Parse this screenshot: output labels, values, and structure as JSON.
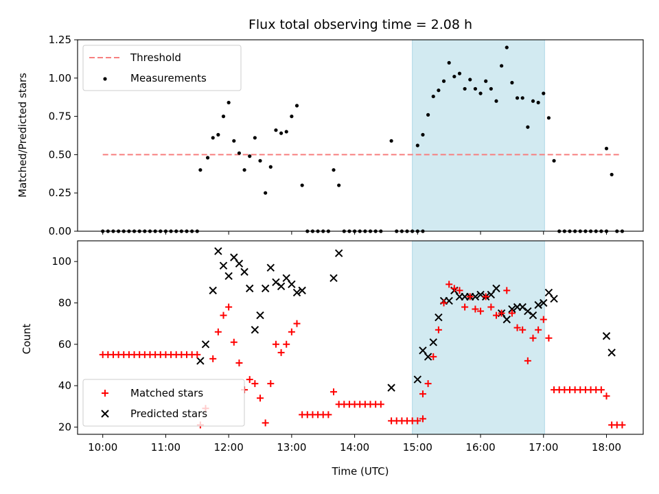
{
  "colors": {
    "threshold": "#f77f7f",
    "measurement": "#000000",
    "matched": "#ff0000",
    "predicted": "#000000",
    "shade": "#add8e6"
  },
  "chart_data": [
    {
      "type": "scatter",
      "title": "Flux total observing time = 2.08 h",
      "ylabel": "Matched/Predicted stars",
      "xlabel": "",
      "xlim": [
        "09:36",
        "18:35"
      ],
      "ylim": [
        0,
        1.25
      ],
      "yticks": [
        0.0,
        0.25,
        0.5,
        0.75,
        1.0,
        1.25
      ],
      "ytick_labels": [
        "0.00",
        "0.25",
        "0.50",
        "0.75",
        "1.00",
        "1.25"
      ],
      "grid": false,
      "legend": "upper left",
      "shaded_interval": [
        "14:55",
        "17:01"
      ],
      "threshold": {
        "name": "Threshold",
        "value": 0.5,
        "x_range": [
          "10:00",
          "18:12"
        ]
      },
      "series": [
        {
          "name": "Measurements",
          "points": [
            [
              "10:00",
              0
            ],
            [
              "10:05",
              0
            ],
            [
              "10:10",
              0
            ],
            [
              "10:15",
              0
            ],
            [
              "10:20",
              0
            ],
            [
              "10:25",
              0
            ],
            [
              "10:30",
              0
            ],
            [
              "10:35",
              0
            ],
            [
              "10:40",
              0
            ],
            [
              "10:45",
              0
            ],
            [
              "10:50",
              0
            ],
            [
              "10:55",
              0
            ],
            [
              "11:00",
              0
            ],
            [
              "11:05",
              0
            ],
            [
              "11:10",
              0
            ],
            [
              "11:15",
              0
            ],
            [
              "11:20",
              0
            ],
            [
              "11:25",
              0
            ],
            [
              "11:30",
              0
            ],
            [
              "11:33",
              0.4
            ],
            [
              "11:40",
              0.48
            ],
            [
              "11:45",
              0.61
            ],
            [
              "11:50",
              0.63
            ],
            [
              "11:55",
              0.75
            ],
            [
              "12:00",
              0.84
            ],
            [
              "12:05",
              0.59
            ],
            [
              "12:10",
              0.51
            ],
            [
              "12:15",
              0.4
            ],
            [
              "12:20",
              0.49
            ],
            [
              "12:25",
              0.61
            ],
            [
              "12:30",
              0.46
            ],
            [
              "12:35",
              0.25
            ],
            [
              "12:40",
              0.42
            ],
            [
              "12:45",
              0.66
            ],
            [
              "12:50",
              0.64
            ],
            [
              "12:55",
              0.65
            ],
            [
              "13:00",
              0.75
            ],
            [
              "13:05",
              0.82
            ],
            [
              "13:10",
              0.3
            ],
            [
              "13:15",
              0
            ],
            [
              "13:20",
              0
            ],
            [
              "13:25",
              0
            ],
            [
              "13:30",
              0
            ],
            [
              "13:35",
              0
            ],
            [
              "13:40",
              0.4
            ],
            [
              "13:45",
              0.3
            ],
            [
              "13:50",
              0
            ],
            [
              "13:55",
              0
            ],
            [
              "14:00",
              0
            ],
            [
              "14:05",
              0
            ],
            [
              "14:10",
              0
            ],
            [
              "14:15",
              0
            ],
            [
              "14:20",
              0
            ],
            [
              "14:25",
              0
            ],
            [
              "14:35",
              0.59
            ],
            [
              "14:40",
              0
            ],
            [
              "14:45",
              0
            ],
            [
              "14:50",
              0
            ],
            [
              "14:55",
              0
            ],
            [
              "15:00",
              0
            ],
            [
              "15:05",
              0
            ],
            [
              "15:00",
              0.56
            ],
            [
              "15:05",
              0.63
            ],
            [
              "15:10",
              0.76
            ],
            [
              "15:15",
              0.88
            ],
            [
              "15:20",
              0.92
            ],
            [
              "15:25",
              0.98
            ],
            [
              "15:30",
              1.1
            ],
            [
              "15:35",
              1.01
            ],
            [
              "15:40",
              1.03
            ],
            [
              "15:45",
              0.93
            ],
            [
              "15:50",
              0.99
            ],
            [
              "15:55",
              0.93
            ],
            [
              "16:00",
              0.9
            ],
            [
              "16:05",
              0.98
            ],
            [
              "16:10",
              0.93
            ],
            [
              "16:15",
              0.85
            ],
            [
              "16:20",
              1.08
            ],
            [
              "16:25",
              1.2
            ],
            [
              "16:30",
              0.97
            ],
            [
              "16:35",
              0.87
            ],
            [
              "16:40",
              0.87
            ],
            [
              "16:45",
              0.68
            ],
            [
              "16:50",
              0.85
            ],
            [
              "16:55",
              0.84
            ],
            [
              "17:00",
              0.9
            ],
            [
              "17:05",
              0.74
            ],
            [
              "17:10",
              0.46
            ],
            [
              "17:15",
              0
            ],
            [
              "17:20",
              0
            ],
            [
              "17:25",
              0
            ],
            [
              "17:30",
              0
            ],
            [
              "17:35",
              0
            ],
            [
              "17:40",
              0
            ],
            [
              "17:45",
              0
            ],
            [
              "17:50",
              0
            ],
            [
              "17:55",
              0
            ],
            [
              "18:00",
              0
            ],
            [
              "18:00",
              0.54
            ],
            [
              "18:05",
              0.37
            ],
            [
              "18:10",
              0
            ],
            [
              "18:15",
              0
            ]
          ]
        }
      ]
    },
    {
      "type": "scatter",
      "title": "",
      "xlabel": "Time (UTC)",
      "ylabel": "Count",
      "xlim": [
        "09:36",
        "18:35"
      ],
      "ylim": [
        16.5,
        110
      ],
      "xticks": [
        "10:00",
        "11:00",
        "12:00",
        "13:00",
        "14:00",
        "15:00",
        "16:00",
        "17:00",
        "18:00"
      ],
      "yticks": [
        20,
        40,
        60,
        80,
        100
      ],
      "grid": false,
      "legend": "lower left",
      "shaded_interval": [
        "14:55",
        "17:01"
      ],
      "series": [
        {
          "name": "Matched stars",
          "marker": "+",
          "points": [
            [
              "10:00",
              55
            ],
            [
              "10:05",
              55
            ],
            [
              "10:10",
              55
            ],
            [
              "10:15",
              55
            ],
            [
              "10:20",
              55
            ],
            [
              "10:25",
              55
            ],
            [
              "10:30",
              55
            ],
            [
              "10:35",
              55
            ],
            [
              "10:40",
              55
            ],
            [
              "10:45",
              55
            ],
            [
              "10:50",
              55
            ],
            [
              "10:55",
              55
            ],
            [
              "11:00",
              55
            ],
            [
              "11:05",
              55
            ],
            [
              "11:10",
              55
            ],
            [
              "11:15",
              55
            ],
            [
              "11:20",
              55
            ],
            [
              "11:25",
              55
            ],
            [
              "11:30",
              55
            ],
            [
              "11:33",
              21
            ],
            [
              "11:38",
              29
            ],
            [
              "11:45",
              53
            ],
            [
              "11:50",
              66
            ],
            [
              "11:55",
              74
            ],
            [
              "12:00",
              78
            ],
            [
              "12:05",
              61
            ],
            [
              "12:10",
              51
            ],
            [
              "12:15",
              38
            ],
            [
              "12:20",
              43
            ],
            [
              "12:25",
              41
            ],
            [
              "12:30",
              34
            ],
            [
              "12:35",
              22
            ],
            [
              "12:40",
              41
            ],
            [
              "12:45",
              60
            ],
            [
              "12:50",
              56
            ],
            [
              "12:55",
              60
            ],
            [
              "13:00",
              66
            ],
            [
              "13:05",
              70
            ],
            [
              "13:10",
              26
            ],
            [
              "13:15",
              26
            ],
            [
              "13:20",
              26
            ],
            [
              "13:25",
              26
            ],
            [
              "13:30",
              26
            ],
            [
              "13:35",
              26
            ],
            [
              "13:40",
              37
            ],
            [
              "13:45",
              31
            ],
            [
              "13:50",
              31
            ],
            [
              "13:55",
              31
            ],
            [
              "14:00",
              31
            ],
            [
              "14:05",
              31
            ],
            [
              "14:10",
              31
            ],
            [
              "14:15",
              31
            ],
            [
              "14:20",
              31
            ],
            [
              "14:25",
              31
            ],
            [
              "14:35",
              23
            ],
            [
              "14:40",
              23
            ],
            [
              "14:45",
              23
            ],
            [
              "14:50",
              23
            ],
            [
              "14:55",
              23
            ],
            [
              "15:00",
              23
            ],
            [
              "15:05",
              24
            ],
            [
              "15:05",
              36
            ],
            [
              "15:10",
              41
            ],
            [
              "15:15",
              54
            ],
            [
              "15:20",
              67
            ],
            [
              "15:25",
              80
            ],
            [
              "15:30",
              89
            ],
            [
              "15:35",
              87
            ],
            [
              "15:40",
              86
            ],
            [
              "15:45",
              78
            ],
            [
              "15:50",
              83
            ],
            [
              "15:55",
              77
            ],
            [
              "16:00",
              76
            ],
            [
              "16:05",
              83
            ],
            [
              "16:10",
              78
            ],
            [
              "16:15",
              74
            ],
            [
              "16:20",
              75
            ],
            [
              "16:25",
              86
            ],
            [
              "16:30",
              75
            ],
            [
              "16:35",
              68
            ],
            [
              "16:40",
              67
            ],
            [
              "16:45",
              52
            ],
            [
              "16:50",
              63
            ],
            [
              "16:55",
              67
            ],
            [
              "17:00",
              72
            ],
            [
              "17:05",
              63
            ],
            [
              "17:10",
              38
            ],
            [
              "17:15",
              38
            ],
            [
              "17:20",
              38
            ],
            [
              "17:25",
              38
            ],
            [
              "17:30",
              38
            ],
            [
              "17:35",
              38
            ],
            [
              "17:40",
              38
            ],
            [
              "17:45",
              38
            ],
            [
              "17:50",
              38
            ],
            [
              "17:55",
              38
            ],
            [
              "18:00",
              35
            ],
            [
              "18:05",
              21
            ],
            [
              "18:10",
              21
            ],
            [
              "18:15",
              21
            ]
          ]
        },
        {
          "name": "Predicted stars",
          "marker": "x",
          "points": [
            [
              "11:33",
              52
            ],
            [
              "11:38",
              60
            ],
            [
              "11:45",
              86
            ],
            [
              "11:50",
              105
            ],
            [
              "11:55",
              98
            ],
            [
              "12:00",
              93
            ],
            [
              "12:05",
              102
            ],
            [
              "12:10",
              99
            ],
            [
              "12:15",
              95
            ],
            [
              "12:20",
              87
            ],
            [
              "12:25",
              67
            ],
            [
              "12:30",
              74
            ],
            [
              "12:35",
              87
            ],
            [
              "12:40",
              97
            ],
            [
              "12:45",
              90
            ],
            [
              "12:50",
              88
            ],
            [
              "12:55",
              92
            ],
            [
              "13:00",
              89
            ],
            [
              "13:05",
              85
            ],
            [
              "13:10",
              86
            ],
            [
              "13:40",
              92
            ],
            [
              "13:45",
              104
            ],
            [
              "14:35",
              39
            ],
            [
              "15:00",
              43
            ],
            [
              "15:05",
              57
            ],
            [
              "15:10",
              54
            ],
            [
              "15:15",
              61
            ],
            [
              "15:20",
              73
            ],
            [
              "15:25",
              81
            ],
            [
              "15:30",
              81
            ],
            [
              "15:35",
              86
            ],
            [
              "15:40",
              83
            ],
            [
              "15:45",
              83
            ],
            [
              "15:50",
              83
            ],
            [
              "15:55",
              83
            ],
            [
              "16:00",
              84
            ],
            [
              "16:05",
              83
            ],
            [
              "16:10",
              84
            ],
            [
              "16:15",
              87
            ],
            [
              "16:20",
              75
            ],
            [
              "16:25",
              72
            ],
            [
              "16:30",
              77
            ],
            [
              "16:35",
              78
            ],
            [
              "16:40",
              78
            ],
            [
              "16:45",
              76
            ],
            [
              "16:50",
              74
            ],
            [
              "16:55",
              79
            ],
            [
              "17:00",
              80
            ],
            [
              "17:05",
              85
            ],
            [
              "17:10",
              82
            ],
            [
              "18:00",
              64
            ],
            [
              "18:05",
              56
            ]
          ]
        }
      ]
    }
  ]
}
